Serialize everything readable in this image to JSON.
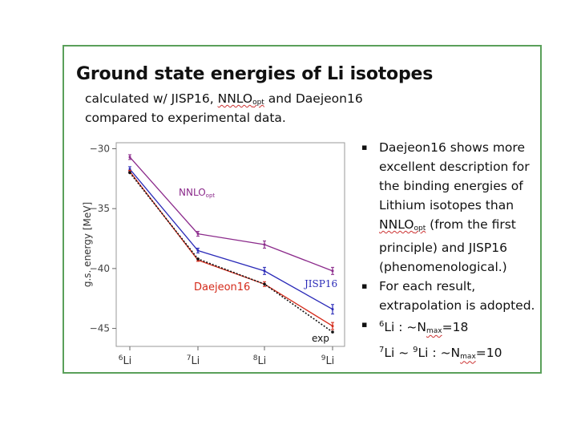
{
  "slide": {
    "title": "Ground state energies of Li isotopes",
    "subtitle_line1_pre": "calculated w/ JISP16, ",
    "subtitle_line1_nnlo": "NNLO",
    "subtitle_line1_nnlo_sub": "opt",
    "subtitle_line1_post": " and Daejeon16",
    "subtitle_line2": "compared to experimental data.",
    "bullets": [
      {
        "marker": "▪",
        "pre": "Daejeon16 shows more excellent description for the binding energies of Lithium isotopes than ",
        "nnlo": "NNLO",
        "nnlo_sub": "opt",
        "post": "  (from the first principle) and  JISP16 (phenomenological.)"
      },
      {
        "marker": "▪",
        "text": "For each result, extrapolation is adopted."
      },
      {
        "marker": "▪",
        "line1_sup": "6",
        "line1_text": "Li : ~N",
        "line1_sub": "max",
        "line1_post": "=18",
        "line2_sup1": "7",
        "line2_text1": "Li ~ ",
        "line2_sup2": "9",
        "line2_text2": "Li : ~N",
        "line2_sub": "max",
        "line2_post": "=10"
      }
    ]
  },
  "chart_data": {
    "type": "line",
    "categories": [
      "6Li",
      "7Li",
      "8Li",
      "9Li"
    ],
    "category_labels": [
      {
        "sup": "6",
        "base": "Li"
      },
      {
        "sup": "7",
        "base": "Li"
      },
      {
        "sup": "8",
        "base": "Li"
      },
      {
        "sup": "9",
        "base": "Li"
      }
    ],
    "ylabel": "g.s. energy  [MeV]",
    "ylim": [
      -46.5,
      -29.5
    ],
    "yticks": [
      -30,
      -35,
      -40,
      -45
    ],
    "yticklabels": [
      "−30",
      "−35",
      "−40",
      "−45"
    ],
    "series": [
      {
        "name": "NNLOopt",
        "label_base": "NNLO",
        "label_sub": "opt",
        "color": "#8b2a8b",
        "values": [
          -30.7,
          -37.1,
          -38.0,
          -40.2
        ],
        "errors": [
          0.2,
          0.2,
          0.3,
          0.3
        ],
        "style": "solid"
      },
      {
        "name": "JISP16",
        "color": "#2a2ab8",
        "values": [
          -31.7,
          -38.5,
          -40.2,
          -43.4
        ],
        "errors": [
          0.2,
          0.2,
          0.3,
          0.4
        ],
        "style": "solid"
      },
      {
        "name": "Daejeon16",
        "color": "#d42a1a",
        "values": [
          -31.9,
          -39.3,
          -41.3,
          -44.8
        ],
        "errors": [
          0.1,
          0.1,
          0.2,
          0.3
        ],
        "style": "solid"
      },
      {
        "name": "exp",
        "color": "#111111",
        "values": [
          -32.0,
          -39.2,
          -41.3,
          -45.3
        ],
        "style": "dotted"
      }
    ],
    "grid": false,
    "legend": "inline labels"
  }
}
